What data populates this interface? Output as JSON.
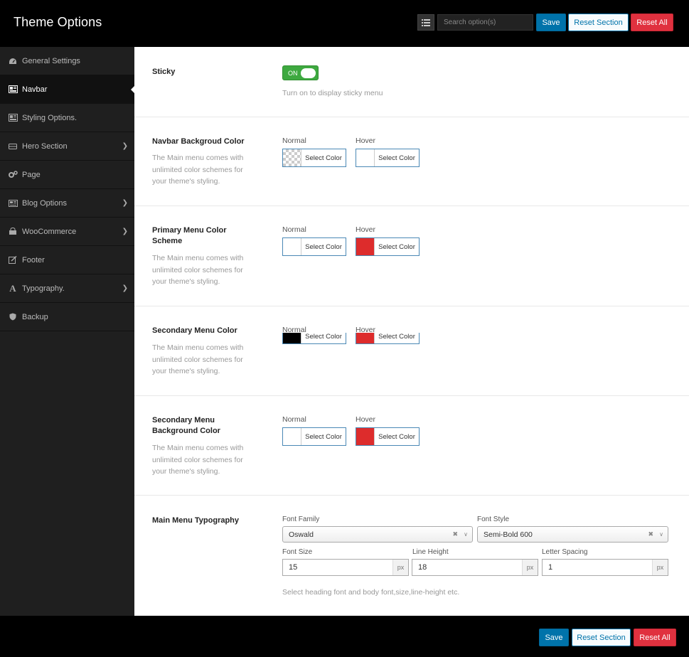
{
  "header": {
    "title": "Theme Options",
    "search_placeholder": "Search option(s)",
    "save_label": "Save",
    "reset_section_label": "Reset Section",
    "reset_all_label": "Reset All"
  },
  "sidebar": {
    "items": [
      {
        "label": "General Settings",
        "icon": "dashboard-icon"
      },
      {
        "label": "Navbar",
        "icon": "navbar-icon",
        "active": true
      },
      {
        "label": "Styling Options.",
        "icon": "styling-icon"
      },
      {
        "label": "Hero Section",
        "icon": "hero-icon",
        "submenu": true
      },
      {
        "label": "Page",
        "icon": "cogs-icon"
      },
      {
        "label": "Blog Options",
        "icon": "blog-icon",
        "submenu": true
      },
      {
        "label": "WooCommerce",
        "icon": "shop-icon",
        "submenu": true
      },
      {
        "label": "Footer",
        "icon": "edit-icon"
      },
      {
        "label": "Typography.",
        "icon": "font-icon",
        "submenu": true
      },
      {
        "label": "Backup",
        "icon": "shield-icon"
      }
    ]
  },
  "sticky": {
    "label": "Sticky",
    "toggle_text": "ON",
    "help": "Turn on to display sticky menu"
  },
  "common": {
    "normal": "Normal",
    "hover": "Hover",
    "select_color": "Select Color",
    "desc": "The Main menu comes with unlimited color schemes for your theme's styling."
  },
  "color_rows": [
    {
      "label": "Navbar Backgroud Color",
      "normal_color": "transparent",
      "hover_color": "#ffffff"
    },
    {
      "label": "Primary Menu Color Scheme",
      "normal_color": "#ffffff",
      "hover_color": "#dd2c2c"
    },
    {
      "label": "Secondary Menu Color",
      "normal_color": "#000000",
      "hover_color": "#dd2c2c"
    },
    {
      "label": "Secondary Menu Background Color",
      "normal_color": "#ffffff",
      "hover_color": "#dd2c2c"
    }
  ],
  "typography": {
    "label": "Main Menu Typography",
    "font_family_label": "Font Family",
    "font_family_value": "Oswald",
    "font_style_label": "Font Style",
    "font_style_value": "Semi-Bold 600",
    "font_size_label": "Font Size",
    "font_size_value": "15",
    "line_height_label": "Line Height",
    "line_height_value": "18",
    "letter_spacing_label": "Letter Spacing",
    "letter_spacing_value": "1",
    "unit": "px",
    "help": "Select heading font and body font,size,line-height etc."
  },
  "footer": {
    "save_label": "Save",
    "reset_section_label": "Reset Section",
    "reset_all_label": "Reset All"
  },
  "colors": {
    "accent": "#0073aa",
    "danger": "#e0313f",
    "toggle_on": "#3ea940"
  }
}
